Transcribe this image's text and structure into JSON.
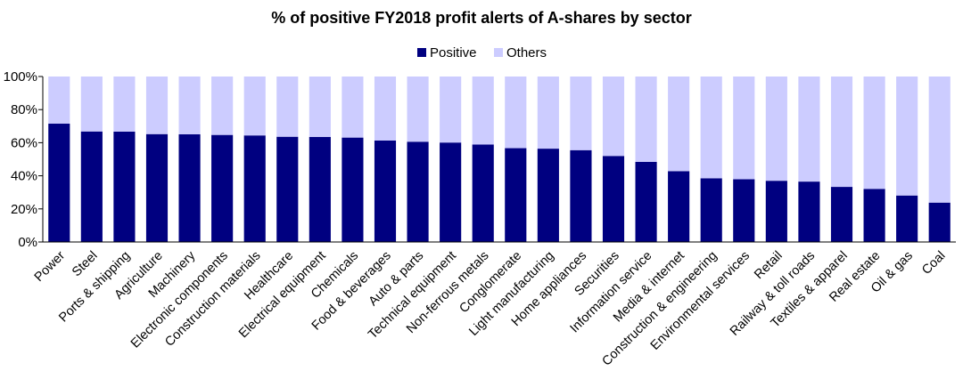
{
  "chart_data": {
    "type": "bar",
    "stacked": true,
    "title": "% of positive FY2018 profit alerts of A-shares by sector",
    "xlabel": "",
    "ylabel": "",
    "ylim": [
      0,
      100
    ],
    "yticks": [
      "0%",
      "20%",
      "40%",
      "60%",
      "80%",
      "100%"
    ],
    "legend_position": "top-center",
    "grid": false,
    "categories": [
      "Power",
      "Steel",
      "Ports & shipping",
      "Agriculture",
      "Machinery",
      "Electronic components",
      "Construction materials",
      "Healthcare",
      "Electrical equipment",
      "Chemicals",
      "Food & beverages",
      "Auto & parts",
      "Technical equipment",
      "Non-ferrous metals",
      "Conglomerate",
      "Light manufacturing",
      "Home appliances",
      "Securities",
      "Information service",
      "Media & internet",
      "Construction & engineering",
      "Environmental services",
      "Retail",
      "Railway & toll roads",
      "Textiles & apparel",
      "Real estate",
      "Oil & gas",
      "Coal"
    ],
    "series": [
      {
        "name": "Positive",
        "color": "#000080",
        "values": [
          71.5,
          66.8,
          66.7,
          65.2,
          65.1,
          64.7,
          64.4,
          63.6,
          63.5,
          63.1,
          61.3,
          60.6,
          60.1,
          58.9,
          56.7,
          56.4,
          55.5,
          52.0,
          48.4,
          42.8,
          38.5,
          37.9,
          37.0,
          36.5,
          33.3,
          32.1,
          28.1,
          23.8
        ]
      },
      {
        "name": "Others",
        "color": "#ccccff",
        "values": [
          28.5,
          33.2,
          33.3,
          34.8,
          34.9,
          35.3,
          35.6,
          36.4,
          36.5,
          36.9,
          38.7,
          39.4,
          39.9,
          41.1,
          43.3,
          43.6,
          44.5,
          48.0,
          51.6,
          57.2,
          61.5,
          62.1,
          63.0,
          63.5,
          66.7,
          67.9,
          71.9,
          76.2
        ]
      }
    ]
  }
}
